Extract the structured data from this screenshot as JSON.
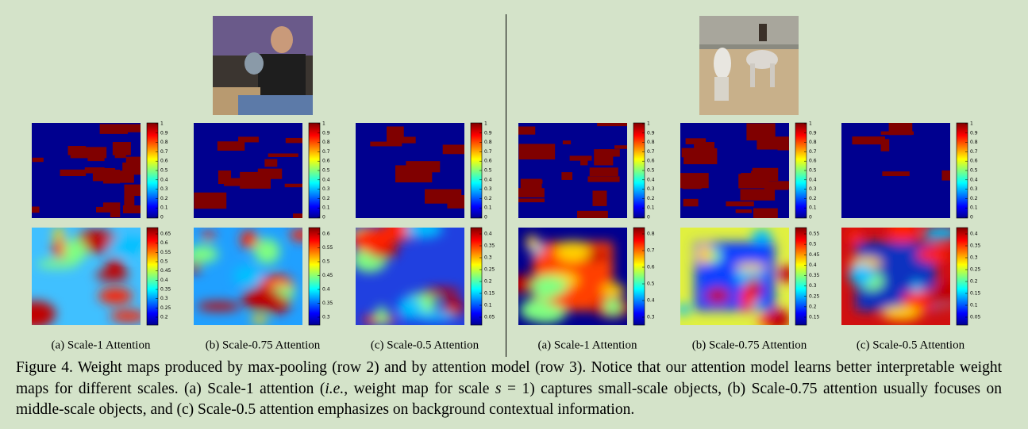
{
  "panels": [
    {
      "caption": "(a) Scale-1 Attention",
      "maxpool_ticks": [
        1,
        0.9,
        0.8,
        0.7,
        0.6,
        0.5,
        0.4,
        0.3,
        0.2,
        0.1,
        0
      ],
      "attention_ticks": [
        0.65,
        0.6,
        0.55,
        0.5,
        0.45,
        0.4,
        0.35,
        0.3,
        0.25,
        0.2
      ]
    },
    {
      "caption": "(b) Scale-0.75 Attention",
      "maxpool_ticks": [
        1,
        0.9,
        0.8,
        0.7,
        0.6,
        0.5,
        0.4,
        0.3,
        0.2,
        0.1,
        0
      ],
      "attention_ticks": [
        0.6,
        0.55,
        0.5,
        0.45,
        0.4,
        0.35,
        0.3
      ]
    },
    {
      "caption": "(c) Scale-0.5 Attention",
      "maxpool_ticks": [
        1,
        0.9,
        0.8,
        0.7,
        0.6,
        0.5,
        0.4,
        0.3,
        0.2,
        0.1,
        0
      ],
      "attention_ticks": [
        0.4,
        0.35,
        0.3,
        0.25,
        0.2,
        0.15,
        0.1,
        0.05
      ]
    },
    {
      "caption": "(a) Scale-1 Attention",
      "maxpool_ticks": [
        1,
        0.9,
        0.8,
        0.7,
        0.6,
        0.5,
        0.4,
        0.3,
        0.2,
        0.1,
        0
      ],
      "attention_ticks": [
        0.8,
        0.7,
        0.6,
        0.5,
        0.4,
        0.3
      ]
    },
    {
      "caption": "(b) Scale-0.75 Attention",
      "maxpool_ticks": [
        1,
        0.9,
        0.8,
        0.7,
        0.6,
        0.5,
        0.4,
        0.3,
        0.2,
        0.1,
        0
      ],
      "attention_ticks": [
        0.55,
        0.5,
        0.45,
        0.4,
        0.35,
        0.3,
        0.25,
        0.2,
        0.15
      ]
    },
    {
      "caption": "(c) Scale-0.5 Attention",
      "maxpool_ticks": [
        1,
        0.9,
        0.8,
        0.7,
        0.6,
        0.5,
        0.4,
        0.3,
        0.2,
        0.1,
        0
      ],
      "attention_ticks": [
        0.4,
        0.35,
        0.3,
        0.25,
        0.2,
        0.15,
        0.1,
        0.05
      ]
    }
  ],
  "figure_caption": [
    "Figure 4. Weight maps produced by max-pooling (row 2) and by attention model (row 3). Notice that our attention model learns better interpretable weight maps for different scales. (a) Scale-1 attention (",
    "i.e.",
    ", weight map for scale ",
    "s",
    " = 1) captures small-scale objects, (b) Scale-0.75 attention usually focuses on middle-scale objects, and (c) Scale-0.5 attention emphasizes on background contextual information."
  ]
}
